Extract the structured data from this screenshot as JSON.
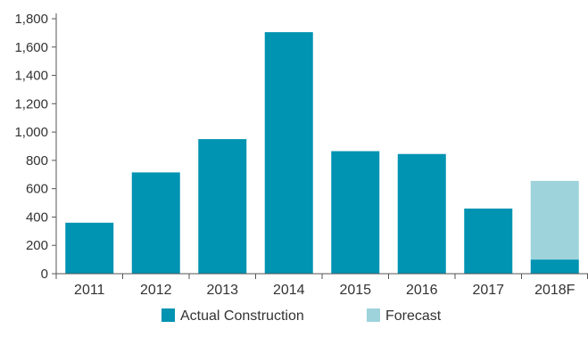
{
  "chart_data": {
    "type": "bar",
    "stacked": true,
    "categories": [
      "2011",
      "2012",
      "2013",
      "2014",
      "2015",
      "2016",
      "2017",
      "2018F"
    ],
    "series": [
      {
        "name": "Actual Construction",
        "color": "#0093b2",
        "values": [
          360,
          715,
          950,
          1705,
          865,
          845,
          460,
          100
        ]
      },
      {
        "name": "Forecast",
        "color": "#9ed3dc",
        "values": [
          0,
          0,
          0,
          0,
          0,
          0,
          0,
          555
        ]
      }
    ],
    "ylim": [
      0,
      1800
    ],
    "y_ticks": [
      0,
      200,
      400,
      600,
      800,
      1000,
      1200,
      1400,
      1600,
      1800
    ],
    "y_tick_labels": [
      "0",
      "200",
      "400",
      "600",
      "800",
      "1,000",
      "1,200",
      "1,400",
      "1,600",
      "1,800"
    ],
    "grid": false,
    "legend": "bottom-center",
    "title": "",
    "xlabel": "",
    "ylabel": ""
  }
}
